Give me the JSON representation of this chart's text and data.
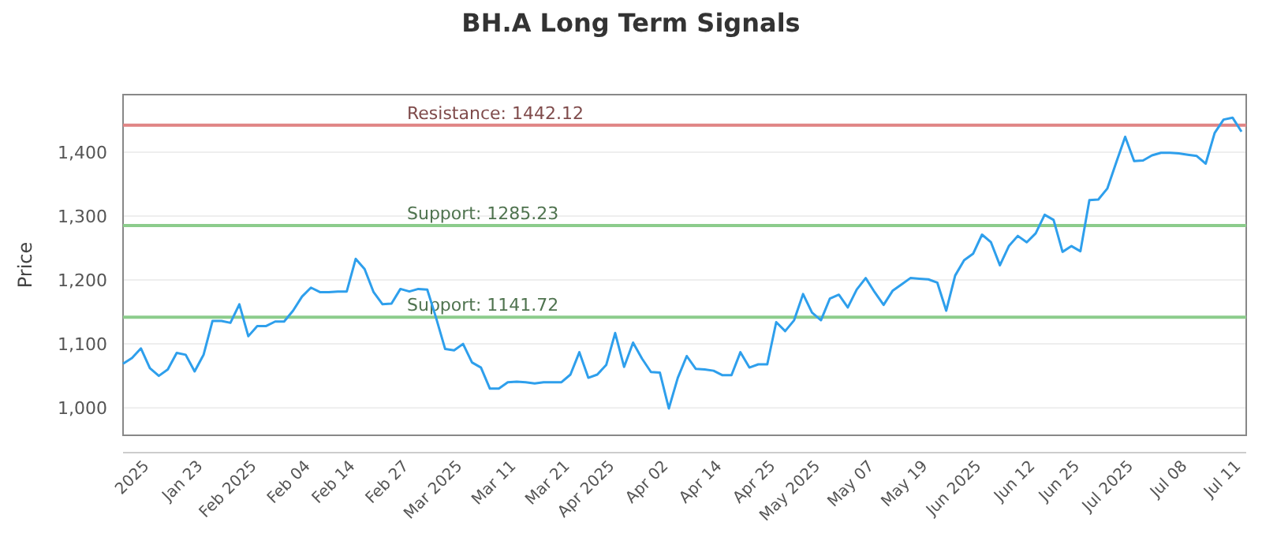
{
  "chart_data": {
    "type": "line",
    "title": "BH.A Long Term Signals",
    "ylabel": "Price",
    "categories": [
      null,
      null,
      null,
      "2025",
      null,
      null,
      null,
      null,
      null,
      "Jan 23",
      null,
      null,
      null,
      null,
      null,
      "Feb 2025",
      null,
      null,
      null,
      null,
      null,
      "Feb 04",
      null,
      null,
      null,
      null,
      "Feb 14",
      null,
      null,
      null,
      null,
      null,
      "Feb 27",
      null,
      null,
      null,
      null,
      null,
      "Mar 2025",
      null,
      null,
      null,
      null,
      null,
      "Mar 11",
      null,
      null,
      null,
      null,
      null,
      "Mar 21",
      null,
      null,
      null,
      null,
      "Apr 2025",
      null,
      null,
      null,
      null,
      null,
      "Apr 02",
      null,
      null,
      null,
      null,
      null,
      "Apr 14",
      null,
      null,
      null,
      null,
      null,
      "Apr 25",
      null,
      null,
      null,
      null,
      "May 2025",
      null,
      null,
      null,
      null,
      null,
      "May 07",
      null,
      null,
      null,
      null,
      null,
      "May 19",
      null,
      null,
      null,
      null,
      null,
      "Jun 2025",
      null,
      null,
      null,
      null,
      null,
      "Jun 12",
      null,
      null,
      null,
      null,
      "Jun 25",
      null,
      null,
      null,
      null,
      null,
      "Jul 2025",
      null,
      null,
      null,
      null,
      null,
      "Jul 08",
      null,
      null,
      null,
      null,
      null,
      "Jul 11"
    ],
    "series": [
      {
        "color": "#2e9fec",
        "values": [
          1069,
          1078,
          1093,
          1062,
          1050,
          1060,
          1086,
          1083,
          1057,
          1083,
          1136,
          1136,
          1133,
          1162,
          1112,
          1128,
          1128,
          1135,
          1135,
          1152,
          1174,
          1188,
          1181,
          1181,
          1182,
          1182,
          1233,
          1217,
          1181,
          1162,
          1163,
          1186,
          1182,
          1186,
          1185,
          1140,
          1092,
          1090,
          1100,
          1071,
          1063,
          1030,
          1030,
          1040,
          1041,
          1040,
          1038,
          1040,
          1040,
          1040,
          1052,
          1087,
          1047,
          1052,
          1067,
          1117,
          1064,
          1102,
          1077,
          1056,
          1055,
          999,
          1047,
          1081,
          1061,
          1060,
          1058,
          1051,
          1051,
          1087,
          1063,
          1068,
          1068,
          1134,
          1120,
          1137,
          1178,
          1149,
          1137,
          1171,
          1177,
          1157,
          1185,
          1203,
          1181,
          1161,
          1183,
          1193,
          1203,
          1202,
          1201,
          1196,
          1152,
          1207,
          1231,
          1241,
          1271,
          1259,
          1223,
          1253,
          1269,
          1259,
          1273,
          1302,
          1294,
          1244,
          1253,
          1245,
          1325,
          1326,
          1343,
          1384,
          1424,
          1386,
          1387,
          1395,
          1399,
          1399,
          1398,
          1396,
          1394,
          1382,
          1430,
          1451,
          1454,
          1432
        ]
      }
    ],
    "ylim": [
      957,
      1490
    ],
    "yticks": [
      {
        "value": 1000,
        "label": "1,000"
      },
      {
        "value": 1100,
        "label": "1,100"
      },
      {
        "value": 1200,
        "label": "1,200"
      },
      {
        "value": 1300,
        "label": "1,300"
      },
      {
        "value": 1400,
        "label": "1,400"
      }
    ],
    "grid": "y",
    "marker": "none",
    "line_style": "solid",
    "ref_lines": [
      {
        "axis": "y",
        "value": 1442.12,
        "label": "Resistance: 1442.12",
        "color": "#e08585"
      },
      {
        "axis": "y",
        "value": 1285.23,
        "label": "Support: 1285.23",
        "color": "#8ccc8c"
      },
      {
        "axis": "y",
        "value": 1141.72,
        "label": "Support: 1141.72",
        "color": "#8ccc8c"
      }
    ]
  }
}
